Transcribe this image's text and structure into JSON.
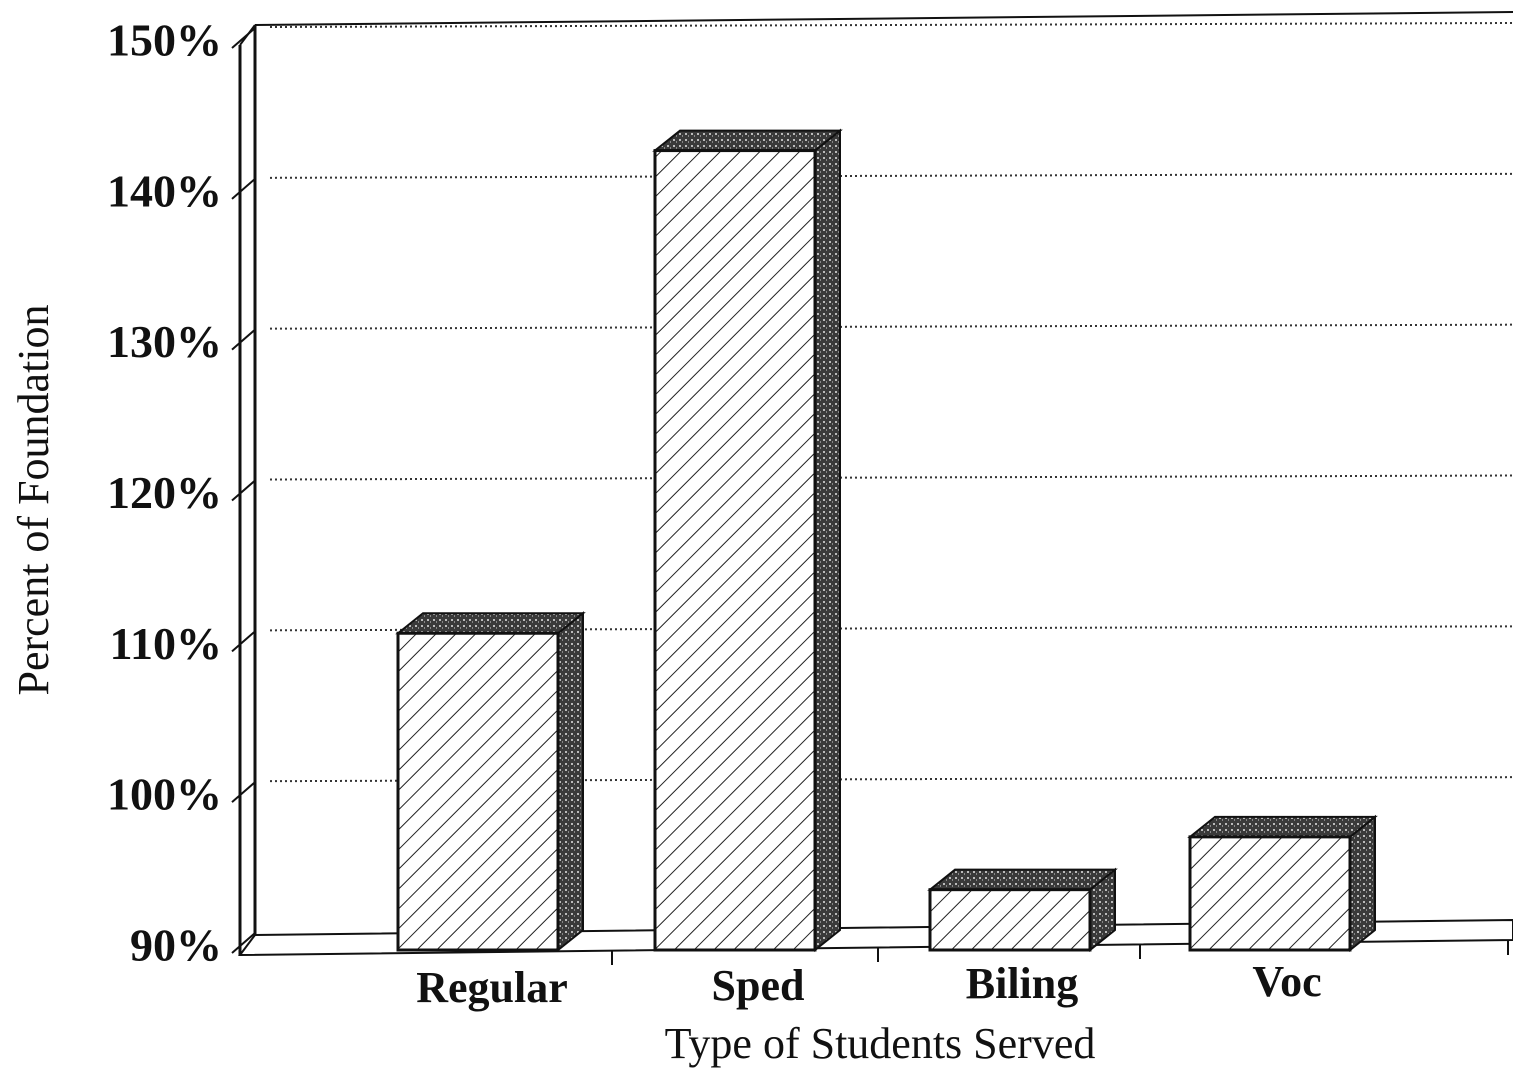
{
  "chart_data": {
    "type": "bar3d",
    "y_label": "Percent of Foundation",
    "x_label": "Type of Students Served",
    "categories": [
      "Regular",
      "Sped",
      "Biling",
      "Voc"
    ],
    "values": [
      111,
      143,
      94,
      97.5
    ],
    "color": "#ffffff",
    "ylim": [
      90,
      150
    ],
    "yticks": [
      {
        "value": 90,
        "label": "90%"
      },
      {
        "value": 100,
        "label": "100%"
      },
      {
        "value": 110,
        "label": "110%"
      },
      {
        "value": 120,
        "label": "120%"
      },
      {
        "value": 130,
        "label": "130%"
      },
      {
        "value": 140,
        "label": "140%"
      },
      {
        "value": 150,
        "label": "150%"
      }
    ],
    "grid": true
  }
}
